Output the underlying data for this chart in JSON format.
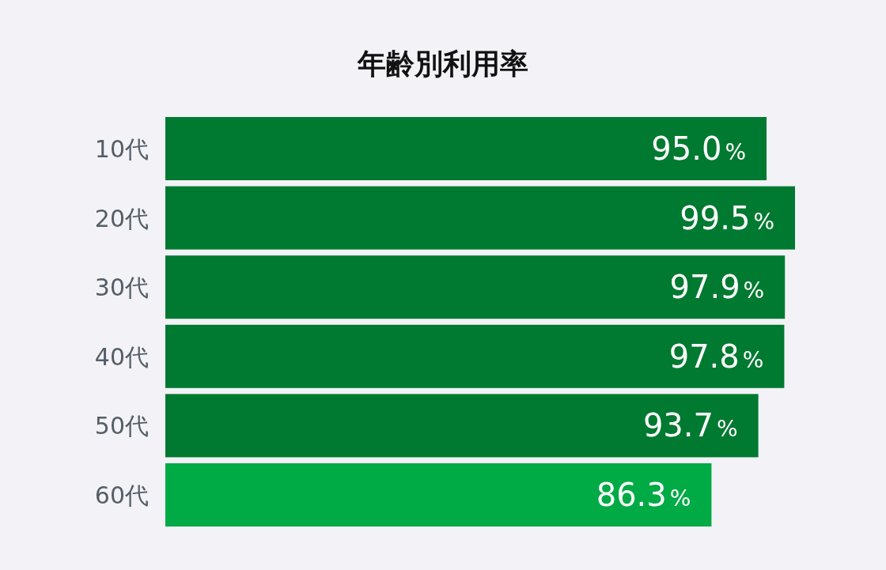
{
  "chart_data": {
    "type": "bar",
    "orientation": "horizontal",
    "title": "年齢別利用率",
    "categories": [
      "10代",
      "20代",
      "30代",
      "40代",
      "50代",
      "60代"
    ],
    "values": [
      95.0,
      99.5,
      97.9,
      97.8,
      93.7,
      86.3
    ],
    "value_labels": [
      "95.0%",
      "99.5%",
      "97.9%",
      "97.8%",
      "93.7%",
      "86.3%"
    ],
    "colors": [
      "#007a30",
      "#007a30",
      "#007a30",
      "#007a30",
      "#007a30",
      "#00aa45"
    ],
    "xlim": [
      0,
      100
    ]
  }
}
